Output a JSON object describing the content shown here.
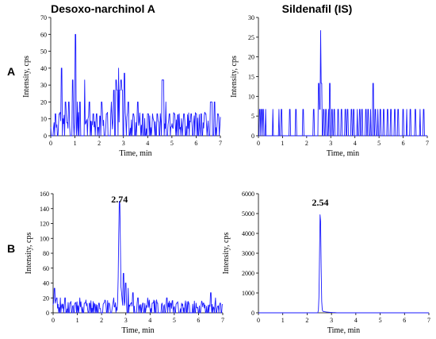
{
  "headers": {
    "left": "Desoxo-narchinol A",
    "right": "Sildenafil (IS)"
  },
  "row_labels": [
    "A",
    "B"
  ],
  "colors": {
    "trace": "#1a1aff",
    "axis": "#000000"
  },
  "chart_data": [
    {
      "type": "line",
      "panel": "A-left",
      "xlabel": "Time, min",
      "ylabel": "Intensity, cps",
      "xlim": [
        0,
        7
      ],
      "ylim": [
        0,
        70
      ],
      "xticks": [
        0,
        1,
        2,
        3,
        4,
        5,
        6,
        7
      ],
      "yticks": [
        0,
        10,
        20,
        30,
        40,
        50,
        60,
        70
      ],
      "series": [
        {
          "style": "noise",
          "baseline": 4,
          "spikes": [
            [
              0.2,
              13
            ],
            [
              0.35,
              13
            ],
            [
              0.45,
              40
            ],
            [
              0.6,
              20
            ],
            [
              0.75,
              20
            ],
            [
              0.9,
              33
            ],
            [
              1.02,
              60
            ],
            [
              1.1,
              20
            ],
            [
              1.2,
              20
            ],
            [
              1.4,
              33
            ],
            [
              1.6,
              20
            ],
            [
              1.75,
              13
            ],
            [
              1.9,
              13
            ],
            [
              2.1,
              20
            ],
            [
              2.3,
              13
            ],
            [
              2.5,
              20
            ],
            [
              2.6,
              27
            ],
            [
              2.7,
              33
            ],
            [
              2.75,
              27
            ],
            [
              2.8,
              40
            ],
            [
              2.85,
              27
            ],
            [
              2.9,
              33
            ],
            [
              2.95,
              27
            ],
            [
              3.05,
              37
            ],
            [
              3.2,
              20
            ],
            [
              3.4,
              13
            ],
            [
              3.6,
              20
            ],
            [
              3.8,
              13
            ],
            [
              4.0,
              13
            ],
            [
              4.2,
              13
            ],
            [
              4.4,
              13
            ],
            [
              4.6,
              33
            ],
            [
              4.65,
              33
            ],
            [
              4.75,
              20
            ],
            [
              4.9,
              13
            ],
            [
              5.1,
              13
            ],
            [
              5.3,
              13
            ],
            [
              5.5,
              13
            ],
            [
              5.8,
              13
            ],
            [
              6.0,
              13
            ],
            [
              6.2,
              13
            ],
            [
              6.4,
              13
            ],
            [
              6.6,
              20
            ],
            [
              6.65,
              20
            ],
            [
              6.75,
              20
            ],
            [
              6.9,
              13
            ]
          ]
        }
      ]
    },
    {
      "type": "line",
      "panel": "A-right",
      "xlabel": "Time, min",
      "ylabel": "Intensity, cps",
      "xlim": [
        0,
        7
      ],
      "ylim": [
        0,
        30
      ],
      "xticks": [
        0,
        1,
        2,
        3,
        4,
        5,
        6,
        7
      ],
      "yticks": [
        0,
        5,
        10,
        15,
        20,
        25,
        30
      ],
      "series": [
        {
          "style": "sparse-spikes",
          "baseline": 0,
          "spikes": [
            [
              0.05,
              6.7
            ],
            [
              0.12,
              6.7
            ],
            [
              0.2,
              6.7
            ],
            [
              0.3,
              6.7
            ],
            [
              0.6,
              6.7
            ],
            [
              0.85,
              6.7
            ],
            [
              0.95,
              6.7
            ],
            [
              1.3,
              6.7
            ],
            [
              1.55,
              6.7
            ],
            [
              1.85,
              6.7
            ],
            [
              2.3,
              6.7
            ],
            [
              2.5,
              13.3
            ],
            [
              2.55,
              6.7
            ],
            [
              2.58,
              26.7
            ],
            [
              2.62,
              13.3
            ],
            [
              2.7,
              6.7
            ],
            [
              2.8,
              6.7
            ],
            [
              2.9,
              6.7
            ],
            [
              2.95,
              13.3
            ],
            [
              3.05,
              6.7
            ],
            [
              3.15,
              6.7
            ],
            [
              3.3,
              6.7
            ],
            [
              3.45,
              6.7
            ],
            [
              3.6,
              6.7
            ],
            [
              3.7,
              6.7
            ],
            [
              3.85,
              6.7
            ],
            [
              3.95,
              6.7
            ],
            [
              4.1,
              6.7
            ],
            [
              4.2,
              6.7
            ],
            [
              4.3,
              6.7
            ],
            [
              4.45,
              6.7
            ],
            [
              4.55,
              6.7
            ],
            [
              4.65,
              6.7
            ],
            [
              4.75,
              13.3
            ],
            [
              4.85,
              6.7
            ],
            [
              4.95,
              6.7
            ],
            [
              5.05,
              6.7
            ],
            [
              5.2,
              6.7
            ],
            [
              5.35,
              6.7
            ],
            [
              5.5,
              6.7
            ],
            [
              5.65,
              6.7
            ],
            [
              5.8,
              6.7
            ],
            [
              6.0,
              6.7
            ],
            [
              6.15,
              6.7
            ],
            [
              6.3,
              6.7
            ],
            [
              6.5,
              6.7
            ],
            [
              6.7,
              6.7
            ],
            [
              6.85,
              6.7
            ]
          ]
        }
      ]
    },
    {
      "type": "line",
      "panel": "B-left",
      "xlabel": "Time, min",
      "ylabel": "Intensity, cps",
      "xlim": [
        0,
        7
      ],
      "ylim": [
        0,
        160
      ],
      "xticks": [
        0,
        1,
        2,
        3,
        4,
        5,
        6,
        7
      ],
      "yticks": [
        0,
        20,
        40,
        60,
        80,
        100,
        120,
        140,
        160
      ],
      "peak_label": "2.74",
      "series": [
        {
          "style": "noise-with-peak",
          "baseline": 5,
          "peak": {
            "x": 2.74,
            "y": 143,
            "width": 0.05
          },
          "spikes": [
            [
              0.05,
              33
            ],
            [
              0.15,
              20
            ],
            [
              0.3,
              20
            ],
            [
              0.5,
              20
            ],
            [
              0.7,
              13
            ],
            [
              0.9,
              13
            ],
            [
              1.1,
              20
            ],
            [
              1.3,
              13
            ],
            [
              1.5,
              13
            ],
            [
              1.7,
              13
            ],
            [
              1.9,
              13
            ],
            [
              2.1,
              13
            ],
            [
              2.3,
              13
            ],
            [
              2.5,
              20
            ],
            [
              2.9,
              53
            ],
            [
              3.0,
              40
            ],
            [
              3.1,
              33
            ],
            [
              3.3,
              27
            ],
            [
              3.5,
              20
            ],
            [
              3.7,
              13
            ],
            [
              3.9,
              20
            ],
            [
              4.1,
              13
            ],
            [
              4.3,
              13
            ],
            [
              4.5,
              13
            ],
            [
              4.7,
              20
            ],
            [
              4.85,
              13
            ],
            [
              5.1,
              13
            ],
            [
              5.3,
              13
            ],
            [
              5.6,
              13
            ],
            [
              5.9,
              13
            ],
            [
              6.2,
              13
            ],
            [
              6.5,
              27
            ],
            [
              6.7,
              20
            ],
            [
              6.9,
              13
            ]
          ]
        }
      ]
    },
    {
      "type": "line",
      "panel": "B-right",
      "xlabel": "Time, min",
      "ylabel": "Intensity, cps",
      "xlim": [
        0,
        7
      ],
      "ylim": [
        0,
        6000
      ],
      "xticks": [
        0,
        1,
        2,
        3,
        4,
        5,
        6,
        7
      ],
      "yticks": [
        0,
        1000,
        2000,
        3000,
        4000,
        5000,
        6000
      ],
      "peak_label": "2.54",
      "series": [
        {
          "style": "single-peak",
          "baseline": 0,
          "peak": {
            "x": 2.54,
            "y": 5200,
            "width": 0.04
          }
        }
      ]
    }
  ]
}
